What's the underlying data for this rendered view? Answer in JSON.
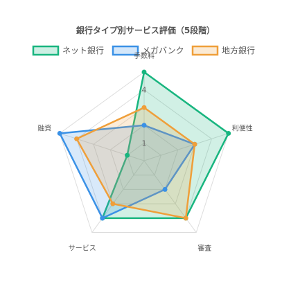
{
  "chart_data": {
    "type": "radar",
    "title": "銀行タイプ別サービス評価（5段階）",
    "axes": [
      "手数料",
      "利便性",
      "審査",
      "サービス",
      "融資"
    ],
    "r_ticks": [
      "1",
      "4"
    ],
    "rlim": [
      0,
      5
    ],
    "legend_position": "top",
    "series": [
      {
        "name": "ネット銀行",
        "values": [
          5,
          5,
          4,
          4,
          1
        ],
        "color": "#18b57f"
      },
      {
        "name": "メガバンク",
        "values": [
          2,
          3,
          2,
          4,
          5
        ],
        "color": "#3a91e6"
      },
      {
        "name": "地方銀行",
        "values": [
          3,
          3,
          4,
          3,
          4
        ],
        "color": "#ef9f3a"
      }
    ]
  }
}
